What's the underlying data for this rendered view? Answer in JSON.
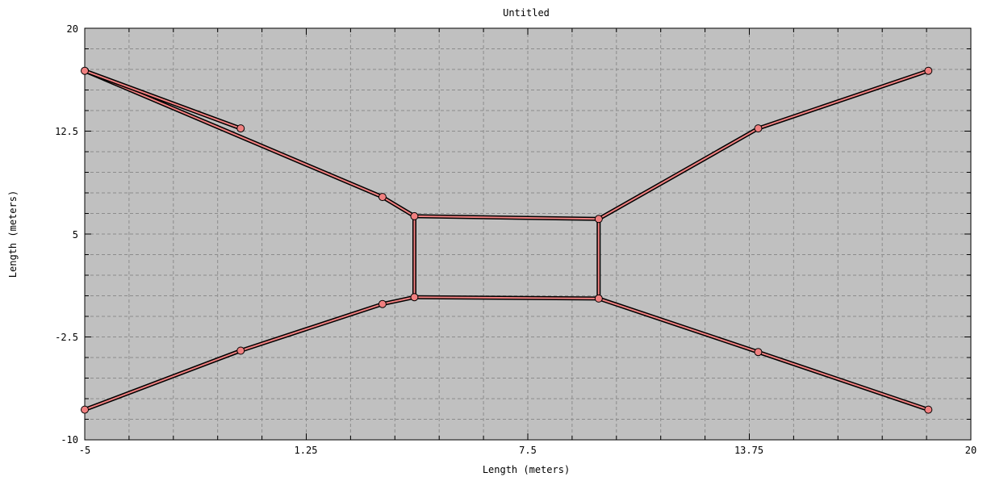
{
  "chart_data": {
    "type": "line",
    "title": "Untitled",
    "xlabel": "Length (meters)",
    "ylabel": "Length (meters)",
    "xlim": [
      -5,
      20
    ],
    "ylim": [
      -10,
      20
    ],
    "x_ticks": [
      "-5",
      "1.25",
      "7.5",
      "13.75",
      "20"
    ],
    "y_ticks": [
      "20",
      "12.5",
      "5",
      "-2.5",
      "-10"
    ],
    "grid": true,
    "background_color": "#c0c0c0",
    "line_color": "#f08080",
    "marker_color": "#f08080",
    "series": [
      {
        "x": [
          -5,
          3.4,
          4.3,
          9.5,
          14,
          18.8
        ],
        "y": [
          16.9,
          7.7,
          6.3,
          6.1,
          12.7,
          16.9
        ]
      },
      {
        "x": [
          4.3,
          4.3
        ],
        "y": [
          6.3,
          0.4
        ]
      },
      {
        "x": [
          9.5,
          9.5
        ],
        "y": [
          6.1,
          0.3
        ]
      },
      {
        "x": [
          4.3,
          9.5
        ],
        "y": [
          0.4,
          0.3
        ]
      },
      {
        "x": [
          -5,
          -0.6,
          3.4,
          4.3
        ],
        "y": [
          -7.8,
          -3.5,
          -0.1,
          0.4
        ]
      },
      {
        "x": [
          9.5,
          14,
          18.8
        ],
        "y": [
          0.3,
          -3.6,
          -7.8
        ]
      },
      {
        "x": [
          -5,
          -0.6
        ],
        "y": [
          16.9,
          12.7
        ]
      }
    ]
  }
}
